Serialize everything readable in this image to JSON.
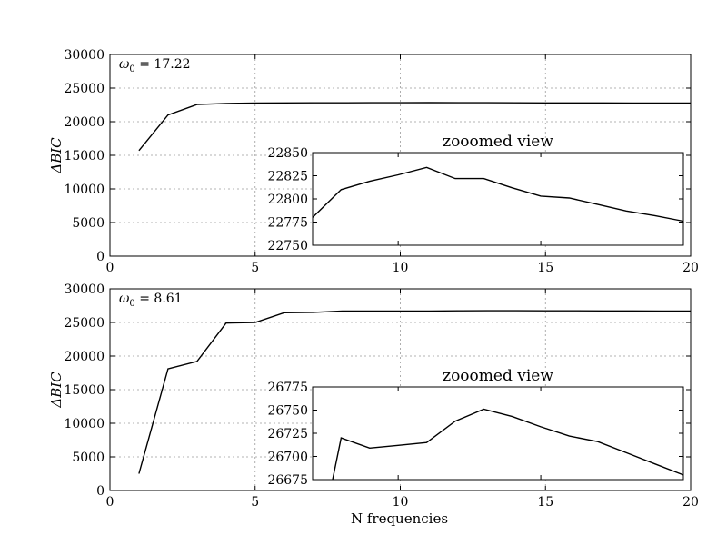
{
  "chart_data": [
    {
      "type": "line",
      "annotation": "ω",
      "annotation_sub": "0",
      "annotation_value": " = 17.22",
      "ylabel": "ΔBIC",
      "xlabel": "",
      "xlim": [
        0,
        20
      ],
      "ylim": [
        0,
        30000
      ],
      "xticks": [
        0,
        5,
        10,
        15,
        20
      ],
      "yticks": [
        0,
        5000,
        10000,
        15000,
        20000,
        25000,
        30000
      ],
      "grid": true,
      "x": [
        1,
        2,
        3,
        4,
        5,
        6,
        7,
        8,
        9,
        10,
        11,
        12,
        13,
        14,
        15,
        16,
        17,
        18,
        19,
        20
      ],
      "y": [
        15700,
        21000,
        22550,
        22720,
        22790,
        22800,
        22805,
        22810,
        22818,
        22826,
        22834,
        22822,
        22822,
        22812,
        22803,
        22801,
        22795,
        22788,
        22783,
        22778
      ],
      "inset": {
        "title": "zooomed view",
        "xlim": [
          7,
          20
        ],
        "ylim": [
          22750,
          22850
        ],
        "xticks": [
          10,
          15,
          20
        ],
        "yticks": [
          22750,
          22775,
          22800,
          22825,
          22850
        ],
        "x": [
          7,
          8,
          9,
          10,
          11,
          12,
          13,
          14,
          15,
          16,
          17,
          18,
          19,
          20
        ],
        "y": [
          22780,
          22810,
          22819,
          22826,
          22834,
          22822,
          22822,
          22812,
          22803,
          22801,
          22794,
          22787,
          22782,
          22776
        ]
      }
    },
    {
      "type": "line",
      "annotation": "ω",
      "annotation_sub": "0",
      "annotation_value": " = 8.61",
      "ylabel": "ΔBIC",
      "xlabel": "N frequencies",
      "xlim": [
        0,
        20
      ],
      "ylim": [
        0,
        30000
      ],
      "xticks": [
        0,
        5,
        10,
        15,
        20
      ],
      "yticks": [
        0,
        5000,
        10000,
        15000,
        20000,
        25000,
        30000
      ],
      "grid": true,
      "x": [
        1,
        2,
        3,
        4,
        5,
        6,
        7,
        8,
        9,
        10,
        11,
        12,
        13,
        14,
        15,
        16,
        17,
        18,
        19,
        20
      ],
      "y": [
        2500,
        18100,
        19200,
        24900,
        25000,
        26450,
        26500,
        26700,
        26690,
        26700,
        26705,
        26730,
        26746,
        26740,
        26732,
        26724,
        26718,
        26710,
        26700,
        26690
      ],
      "inset": {
        "title": "zooomed view",
        "xlim": [
          7,
          20
        ],
        "ylim": [
          26675,
          26775
        ],
        "xticks": [
          10,
          15,
          20
        ],
        "yticks": [
          26675,
          26700,
          26725,
          26750,
          26775
        ],
        "x": [
          7.7,
          8,
          9,
          10,
          11,
          12,
          13,
          14,
          15,
          16,
          17,
          18,
          19,
          20
        ],
        "y": [
          26675,
          26720,
          26709,
          26712,
          26715,
          26738,
          26751,
          26743,
          26732,
          26722,
          26716,
          26704,
          26692,
          26680
        ]
      }
    }
  ]
}
